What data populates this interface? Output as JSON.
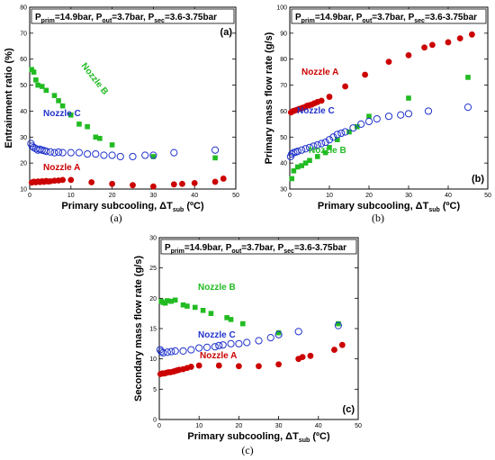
{
  "chart_data": [
    {
      "type": "scatter",
      "panel_label": "(a)",
      "caption": "(a)",
      "header": {
        "a": "P",
        "a_sub": "prim",
        "b": "=14.9bar, P",
        "b_sub": "out",
        "c": "=3.7bar, P",
        "c_sub": "sec",
        "d": "=3.6-3.75bar"
      },
      "xlabel": {
        "main": "Primary subcooling, ΔT",
        "sub": "sub",
        "unit": " (ºC)"
      },
      "ylabel": "Entrainment ratio (%)",
      "xlim": [
        0,
        50
      ],
      "ylim": [
        10,
        80
      ],
      "xticks": [
        0,
        10,
        20,
        30,
        40,
        50
      ],
      "yticks": [
        10,
        20,
        30,
        40,
        50,
        60,
        70,
        80
      ],
      "series": [
        {
          "name": "Nozzle A",
          "color": "#cc0000",
          "marker": "circle-filled",
          "x": [
            0.5,
            1,
            1.5,
            2,
            2.5,
            3,
            3.5,
            4,
            4.5,
            5,
            6,
            7,
            8,
            10,
            15,
            20,
            25,
            30,
            35,
            37,
            40,
            45,
            47
          ],
          "y": [
            12.5,
            12.8,
            12.6,
            12.9,
            12.7,
            13,
            12.8,
            13.1,
            12.9,
            13,
            13.2,
            13.3,
            13.5,
            13.5,
            12.6,
            12,
            11.5,
            11,
            11.8,
            12,
            12.3,
            12.8,
            14
          ]
        },
        {
          "name": "Nozzle B",
          "color": "#22bb22",
          "marker": "square-filled",
          "x": [
            0.5,
            1,
            1.5,
            2,
            3,
            4,
            6,
            7,
            8,
            10,
            12,
            14,
            16,
            17,
            20,
            30,
            45
          ],
          "y": [
            56,
            55,
            52,
            50,
            49.5,
            48,
            46,
            44,
            42,
            38.5,
            35,
            34,
            30,
            29.5,
            27,
            22.5,
            22
          ]
        },
        {
          "name": "Nozzle C",
          "color": "#2233cc",
          "marker": "circle-open",
          "x": [
            0.3,
            0.6,
            1,
            1.5,
            2,
            2.5,
            3,
            3.5,
            4,
            5,
            6,
            7,
            8,
            10,
            12,
            14,
            16,
            18,
            20,
            22,
            25,
            28,
            30,
            35,
            45
          ],
          "y": [
            27.5,
            26.5,
            26,
            25.5,
            25,
            25.3,
            25,
            24.8,
            24.5,
            24.3,
            24,
            24.2,
            24,
            24,
            24,
            23.5,
            23.5,
            23,
            23,
            22.5,
            22.5,
            23,
            23,
            24,
            25
          ]
        }
      ],
      "labels": [
        {
          "text": "Nozzle B",
          "rotated": true
        },
        {
          "text": "Nozzle C"
        },
        {
          "text": "Nozzle A"
        }
      ]
    },
    {
      "type": "scatter",
      "panel_label": "(b)",
      "caption": "(b)",
      "header": {
        "a": "P",
        "a_sub": "prim",
        "b": "=14.9bar, P",
        "b_sub": "out",
        "c": "=3.7bar, P",
        "c_sub": "sec",
        "d": "=3.6-3.75bar"
      },
      "xlabel": {
        "main": "Primary subcooling, ΔT",
        "sub": "sub",
        "unit": " (ºC)"
      },
      "ylabel": "Primary mass flow rate (g/s)",
      "xlim": [
        0,
        50
      ],
      "ylim": [
        30,
        100
      ],
      "xticks": [
        0,
        10,
        20,
        30,
        40,
        50
      ],
      "yticks": [
        30,
        40,
        50,
        60,
        70,
        80,
        90,
        100
      ],
      "series": [
        {
          "name": "Nozzle A",
          "color": "#cc0000",
          "marker": "circle-filled",
          "x": [
            0.3,
            0.8,
            1.2,
            1.8,
            2.3,
            2.8,
            3.3,
            3.8,
            4.3,
            4.8,
            5.5,
            6.2,
            7,
            8,
            10,
            14,
            19,
            25,
            30,
            34,
            36,
            40,
            43,
            46
          ],
          "y": [
            59.5,
            60,
            60.2,
            60.5,
            60.8,
            61,
            61.3,
            61.5,
            62,
            62.2,
            62.5,
            63,
            63.5,
            64,
            65.5,
            69.5,
            74,
            79,
            81.5,
            84.5,
            85.5,
            86.5,
            88,
            89.5
          ]
        },
        {
          "name": "Nozzle B",
          "color": "#22bb22",
          "marker": "square-filled",
          "x": [
            0.5,
            1,
            2,
            3,
            4,
            5,
            7,
            9,
            10,
            12,
            15,
            17,
            20,
            30,
            45
          ],
          "y": [
            34,
            37,
            38.5,
            39,
            40,
            41,
            42.5,
            44,
            46,
            49,
            52,
            54,
            58,
            65,
            73
          ]
        },
        {
          "name": "Nozzle C",
          "color": "#2233cc",
          "marker": "circle-open",
          "x": [
            0.2,
            0.5,
            1,
            1.5,
            2,
            3,
            4,
            5,
            6,
            7,
            8,
            9,
            10,
            11,
            12,
            13,
            14,
            16,
            18,
            20,
            22,
            25,
            28,
            30,
            35,
            45
          ],
          "y": [
            42.5,
            43.5,
            44,
            44.2,
            44.5,
            45,
            45.5,
            46,
            46.5,
            47,
            47.5,
            48,
            49,
            50,
            51,
            51.5,
            52,
            53.5,
            55,
            56,
            57,
            58,
            58.5,
            59,
            60,
            61.5
          ]
        }
      ],
      "labels": [
        {
          "text": "Nozzle A"
        },
        {
          "text": "Nozzle C"
        },
        {
          "text": "Nozzle B"
        }
      ]
    },
    {
      "type": "scatter",
      "panel_label": "(c)",
      "caption": "(c)",
      "header": {
        "a": "P",
        "a_sub": "prim",
        "b": "=14.9bar, P",
        "b_sub": "out",
        "c": "=3.7bar, P",
        "c_sub": "sec",
        "d": "=3.6-3.75bar"
      },
      "xlabel": {
        "main": "Primary subcooling, ΔT",
        "sub": "sub",
        "unit": " (ºC)"
      },
      "ylabel": "Secondary mass flow rate (g/s)",
      "xlim": [
        0,
        50
      ],
      "ylim": [
        0,
        30
      ],
      "xticks": [
        0,
        10,
        20,
        30,
        40,
        50
      ],
      "yticks": [
        0,
        5,
        10,
        15,
        20,
        25,
        30
      ],
      "series": [
        {
          "name": "Nozzle A",
          "color": "#cc0000",
          "marker": "circle-filled",
          "x": [
            0.3,
            0.8,
            1.3,
            1.8,
            2.3,
            2.8,
            3.5,
            4,
            4.5,
            5,
            6,
            7,
            8,
            10,
            15,
            20,
            25,
            30,
            35,
            36,
            38,
            44,
            46
          ],
          "y": [
            7.5,
            7.6,
            7.6,
            7.7,
            7.8,
            7.8,
            7.9,
            8,
            8.1,
            8.2,
            8.3,
            8.5,
            8.7,
            8.9,
            8.9,
            8.8,
            8.8,
            9.1,
            10,
            10.3,
            10.5,
            11.5,
            12.3
          ]
        },
        {
          "name": "Nozzle B",
          "color": "#22bb22",
          "marker": "square-filled",
          "x": [
            0.5,
            1,
            1.5,
            2,
            3,
            4,
            6,
            7,
            9,
            11,
            13,
            17,
            18,
            21,
            30,
            45
          ],
          "y": [
            19.5,
            19.3,
            19.2,
            19.6,
            19.5,
            19.7,
            18.9,
            18.7,
            18.5,
            18,
            17.5,
            16.8,
            16.5,
            15.8,
            14.3,
            15.8
          ]
        },
        {
          "name": "Nozzle C",
          "color": "#2233cc",
          "marker": "circle-open",
          "x": [
            0.2,
            0.5,
            1,
            2,
            3,
            4,
            6,
            8,
            10,
            12,
            14,
            15,
            16,
            18,
            20,
            22,
            25,
            28,
            30,
            35,
            45
          ],
          "y": [
            11.5,
            11.2,
            11,
            11.1,
            11.2,
            11.3,
            11.3,
            11.5,
            11.8,
            11.9,
            12,
            12.2,
            12.3,
            12.5,
            12.5,
            12.7,
            13,
            13.5,
            14,
            14.5,
            15.5
          ]
        }
      ],
      "labels": [
        {
          "text": "Nozzle B"
        },
        {
          "text": "Nozzle C"
        },
        {
          "text": "Nozzle A"
        }
      ]
    }
  ]
}
